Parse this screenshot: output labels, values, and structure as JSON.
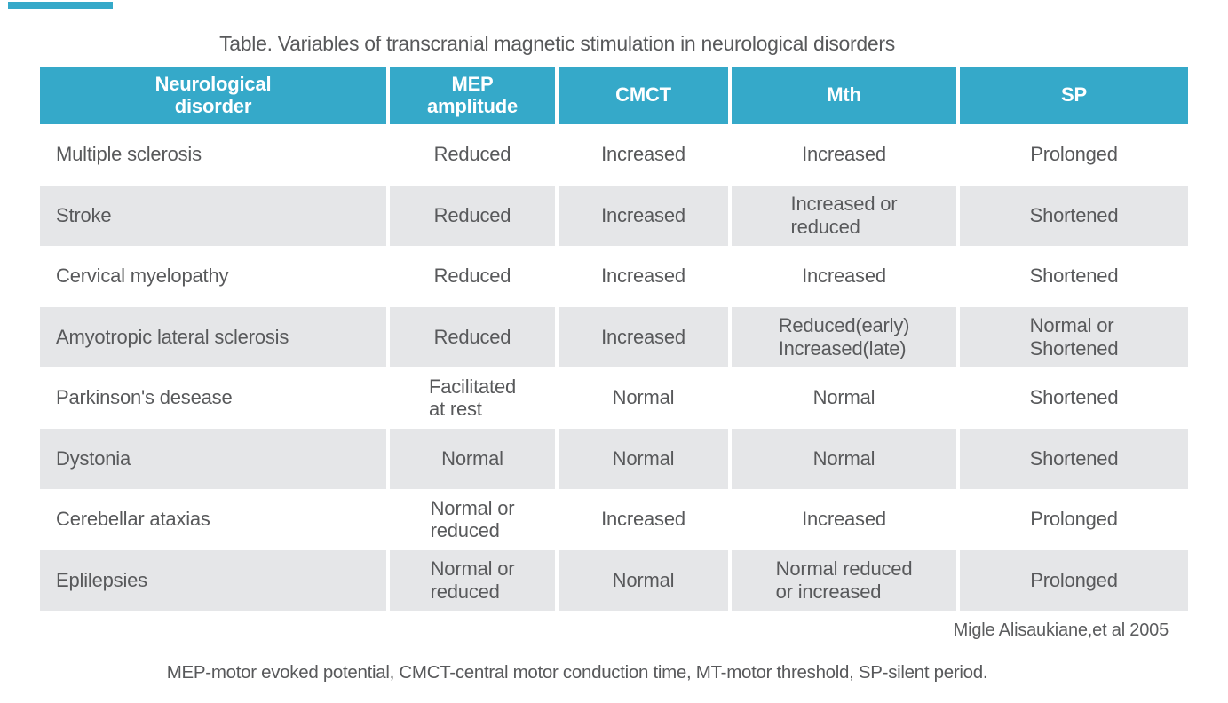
{
  "title": "Table. Variables of transcranial magnetic stimulation in neurological disorders",
  "colors": {
    "header_bg": "#35a9c9",
    "alt_row_bg": "#e5e6e8",
    "header_text": "#ffffff",
    "body_text": "#58595b",
    "accent_bar": "#35a9c9"
  },
  "table": {
    "headers": [
      "Neurological\ndisorder",
      "MEP\namplitude",
      "CMCT",
      "Mth",
      "SP"
    ],
    "rows": [
      [
        "Multiple sclerosis",
        "Reduced",
        "Increased",
        "Increased",
        "Prolonged"
      ],
      [
        "Stroke",
        "Reduced",
        "Increased",
        "Increased or\nreduced",
        "Shortened"
      ],
      [
        "Cervical myelopathy",
        "Reduced",
        "Increased",
        "Increased",
        "Shortened"
      ],
      [
        "Amyotropic lateral sclerosis",
        "Reduced",
        "Increased",
        "Reduced(early)\nIncreased(late)",
        "Normal or\nShortened"
      ],
      [
        "Parkinson's desease",
        "Facilitated\nat rest",
        "Normal",
        "Normal",
        "Shortened"
      ],
      [
        "Dystonia",
        "Normal",
        "Normal",
        "Normal",
        "Shortened"
      ],
      [
        "Cerebellar ataxias",
        "Normal or\nreduced",
        "Increased",
        "Increased",
        "Prolonged"
      ],
      [
        "Eplilepsies",
        "Normal or\nreduced",
        "Normal",
        "Normal reduced\nor increased",
        "Prolonged"
      ]
    ]
  },
  "citation": "Migle Alisaukiane,et al 2005",
  "footnote": "MEP-motor evoked potential, CMCT-central motor conduction time, MT-motor threshold, SP-silent period."
}
